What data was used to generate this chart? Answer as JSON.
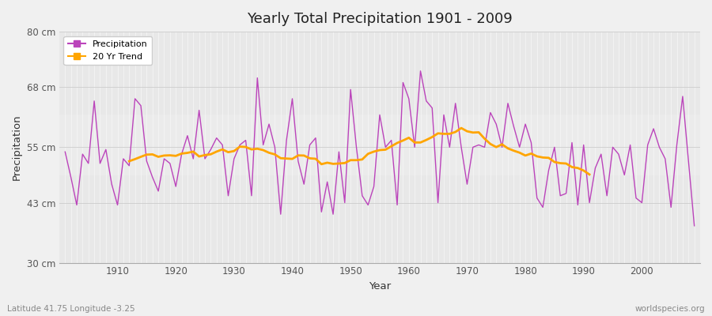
{
  "title": "Yearly Total Precipitation 1901 - 2009",
  "xlabel": "Year",
  "ylabel": "Precipitation",
  "subtitle": "Latitude 41.75 Longitude -3.25",
  "watermark": "worldspecies.org",
  "bg_color": "#f0f0f0",
  "plot_bg_color": "#e8e8e8",
  "plot_band_color": "#ebebeb",
  "line_color": "#bb44bb",
  "trend_color": "#FFA500",
  "years": [
    1901,
    1902,
    1903,
    1904,
    1905,
    1906,
    1907,
    1908,
    1909,
    1910,
    1911,
    1912,
    1913,
    1914,
    1915,
    1916,
    1917,
    1918,
    1919,
    1920,
    1921,
    1922,
    1923,
    1924,
    1925,
    1926,
    1927,
    1928,
    1929,
    1930,
    1931,
    1932,
    1933,
    1934,
    1935,
    1936,
    1937,
    1938,
    1939,
    1940,
    1941,
    1942,
    1943,
    1944,
    1945,
    1946,
    1947,
    1948,
    1949,
    1950,
    1951,
    1952,
    1953,
    1954,
    1955,
    1956,
    1957,
    1958,
    1959,
    1960,
    1961,
    1962,
    1963,
    1964,
    1965,
    1966,
    1967,
    1968,
    1969,
    1970,
    1971,
    1972,
    1973,
    1974,
    1975,
    1976,
    1977,
    1978,
    1979,
    1980,
    1981,
    1982,
    1983,
    1984,
    1985,
    1986,
    1987,
    1988,
    1989,
    1990,
    1991,
    1992,
    1993,
    1994,
    1995,
    1996,
    1997,
    1998,
    1999,
    2000,
    2001,
    2002,
    2003,
    2004,
    2005,
    2006,
    2007,
    2008,
    2009
  ],
  "precip": [
    54.0,
    48.5,
    42.5,
    53.5,
    51.5,
    65.0,
    51.5,
    54.5,
    47.0,
    42.5,
    52.5,
    51.0,
    65.5,
    64.0,
    52.0,
    48.5,
    45.5,
    52.5,
    51.5,
    46.5,
    53.5,
    57.5,
    52.5,
    63.0,
    52.5,
    54.5,
    57.0,
    55.5,
    44.5,
    52.5,
    55.5,
    56.5,
    44.5,
    70.0,
    55.5,
    60.0,
    55.0,
    40.5,
    56.5,
    65.5,
    52.0,
    47.0,
    55.5,
    57.0,
    41.0,
    47.5,
    40.5,
    54.0,
    43.0,
    67.5,
    55.0,
    44.5,
    42.5,
    46.5,
    62.0,
    55.0,
    56.5,
    42.5,
    69.0,
    65.5,
    55.0,
    71.5,
    65.0,
    63.5,
    43.0,
    62.0,
    55.0,
    64.5,
    55.0,
    47.0,
    55.0,
    55.5,
    55.0,
    62.5,
    60.0,
    55.0,
    64.5,
    59.5,
    55.0,
    60.0,
    56.0,
    44.0,
    42.0,
    50.0,
    55.0,
    44.5,
    45.0,
    56.0,
    42.5,
    55.5,
    43.0,
    50.5,
    53.5,
    44.5,
    55.0,
    53.5,
    49.0,
    55.5,
    44.0,
    43.0,
    55.5,
    59.0,
    55.0,
    52.5,
    42.0,
    55.5,
    66.0,
    52.0,
    38.0
  ],
  "ylim": [
    30,
    80
  ],
  "yticks": [
    30,
    43,
    55,
    68,
    80
  ],
  "ytick_labels": [
    "30 cm",
    "43 cm",
    "55 cm",
    "68 cm",
    "80 cm"
  ],
  "xticks": [
    1910,
    1920,
    1930,
    1940,
    1950,
    1960,
    1970,
    1980,
    1990,
    2000
  ],
  "legend_items": [
    {
      "label": "Precipitation",
      "color": "#bb44bb"
    },
    {
      "label": "20 Yr Trend",
      "color": "#FFA500"
    }
  ],
  "band_y_low": 49,
  "band_y_high": 62
}
